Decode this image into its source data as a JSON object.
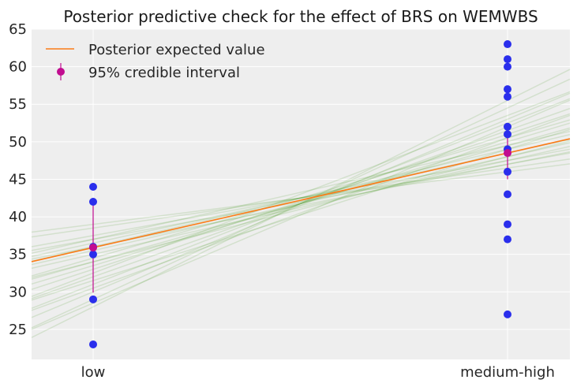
{
  "chart_data": {
    "type": "scatter",
    "title": "Posterior predictive check for the effect of BRS on WEMWBS",
    "xlabel": "",
    "ylabel": "",
    "categories": [
      "low",
      "medium-high"
    ],
    "ylim": [
      21,
      65
    ],
    "yticks": [
      25,
      30,
      35,
      40,
      45,
      50,
      55,
      60,
      65
    ],
    "grid": true,
    "legend_position": "top-left",
    "legend": {
      "expected_label": "Posterior expected value",
      "interval_label": "95% credible interval"
    },
    "observed": {
      "low": [
        23,
        29,
        35,
        36,
        42,
        44
      ],
      "medium-high": [
        27,
        37,
        39,
        43,
        46,
        49,
        51,
        52,
        56,
        57,
        60,
        61,
        63
      ]
    },
    "expected_line": {
      "low": 35.9,
      "medium-high": 48.5
    },
    "credible_interval": {
      "low": {
        "mean": 35.9,
        "lower": 29.9,
        "upper": 42.1
      },
      "medium-high": {
        "mean": 48.5,
        "lower": 45.0,
        "upper": 51.8
      }
    },
    "posterior_samples": [
      [
        33.5,
        50.0
      ],
      [
        31.0,
        52.5
      ],
      [
        37.0,
        47.0
      ],
      [
        34.0,
        49.5
      ],
      [
        30.0,
        53.0
      ],
      [
        38.5,
        46.5
      ],
      [
        35.5,
        48.0
      ],
      [
        32.0,
        51.5
      ],
      [
        36.5,
        48.5
      ],
      [
        29.0,
        54.5
      ],
      [
        34.5,
        50.5
      ],
      [
        37.5,
        47.5
      ],
      [
        31.5,
        49.0
      ],
      [
        33.0,
        51.0
      ],
      [
        36.0,
        49.0
      ],
      [
        28.5,
        52.0
      ],
      [
        35.0,
        47.5
      ],
      [
        39.0,
        46.0
      ],
      [
        30.5,
        50.5
      ],
      [
        32.5,
        53.5
      ],
      [
        34.0,
        48.0
      ],
      [
        37.0,
        49.5
      ],
      [
        28.0,
        55.5
      ],
      [
        36.0,
        47.0
      ]
    ],
    "colors": {
      "observed": "#2a2eec",
      "expected": "#fa7c17",
      "interval": "#c10c90",
      "samples": "#328c06",
      "background": "#eeeeee",
      "grid": "#ffffff"
    }
  }
}
